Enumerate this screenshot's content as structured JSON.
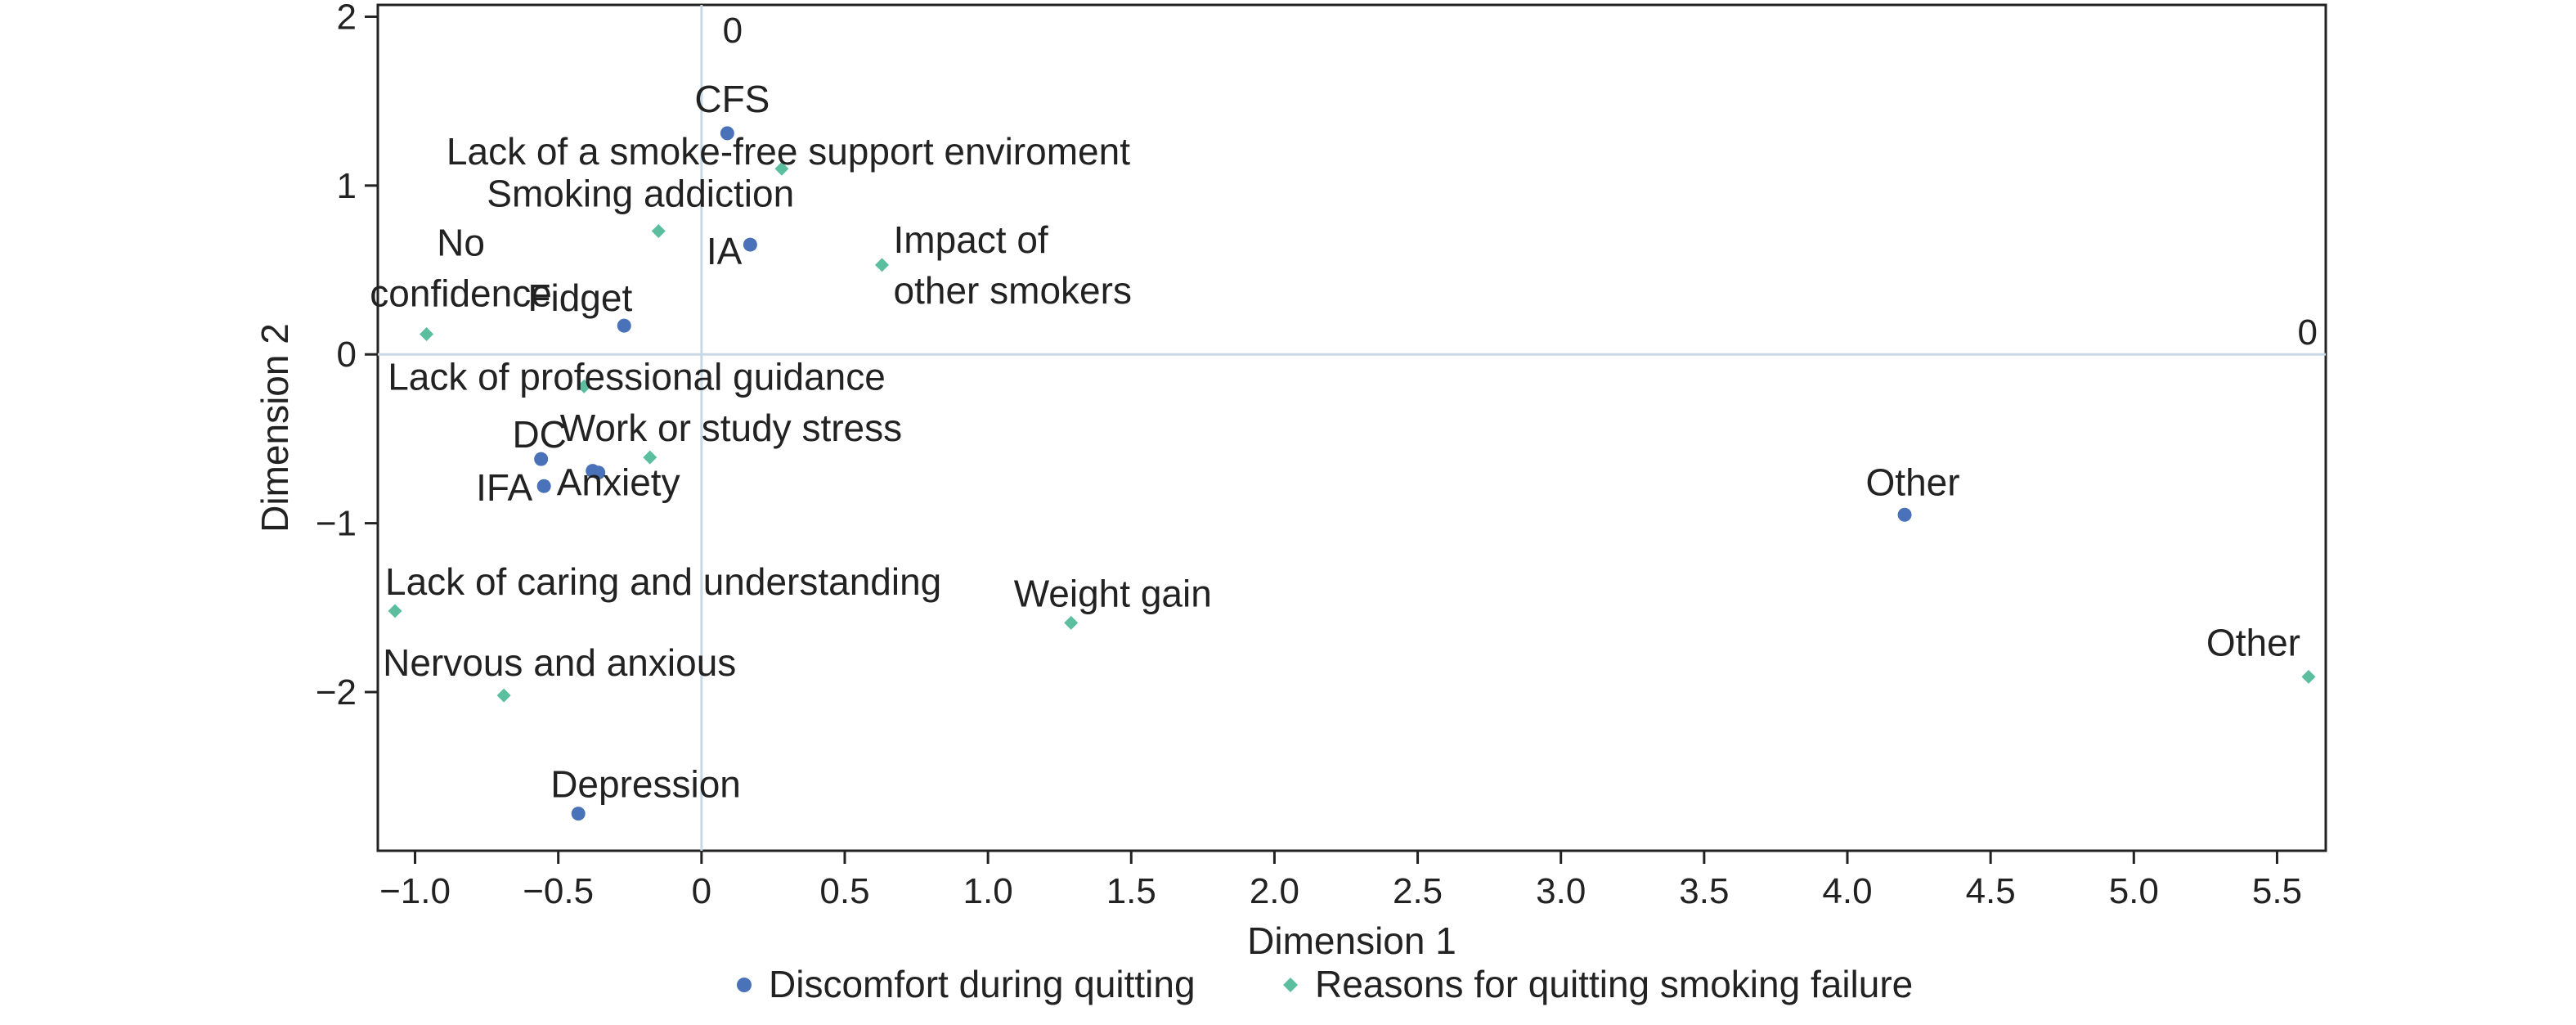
{
  "chart_data": {
    "type": "scatter",
    "xlabel": "Dimension 1",
    "ylabel": "Dimension 2",
    "xlim": [
      -1.13,
      5.67
    ],
    "ylim": [
      -2.94,
      2.07
    ],
    "xticks": [
      -1.0,
      -0.5,
      0,
      0.5,
      1.0,
      1.5,
      2.0,
      2.5,
      3.0,
      3.5,
      4.0,
      4.5,
      5.0,
      5.5
    ],
    "xtick_labels": [
      "−1.0",
      "−0.5",
      "0",
      "0.5",
      "1.0",
      "1.5",
      "2.0",
      "2.5",
      "3.0",
      "3.5",
      "4.0",
      "4.5",
      "5.0",
      "5.5"
    ],
    "yticks": [
      2,
      1,
      0,
      -1,
      -2
    ],
    "ytick_labels": [
      "2",
      "1",
      "0",
      "−1",
      "−2"
    ],
    "reference_line_labels": {
      "vertical": "0",
      "horizontal": "0"
    },
    "grid": false,
    "legend_position": "bottom-center",
    "series": [
      {
        "name": "Discomfort during quitting",
        "marker": "circle",
        "color": "#4a72b8",
        "points": [
          {
            "label": "CFS",
            "x": 0.09,
            "y": 1.31
          },
          {
            "label": "IA",
            "x": 0.17,
            "y": 0.65
          },
          {
            "label": "Fidget",
            "x": -0.27,
            "y": 0.17
          },
          {
            "label": "DC",
            "x": -0.56,
            "y": -0.62
          },
          {
            "label": "IFA",
            "x": -0.55,
            "y": -0.78
          },
          {
            "label": "Anxiety",
            "x": -0.38,
            "y": -0.69
          },
          {
            "label": "",
            "x": -0.36,
            "y": -0.7
          },
          {
            "label": "Other",
            "x": 4.2,
            "y": -0.95
          },
          {
            "label": "Depression",
            "x": -0.43,
            "y": -2.72
          }
        ]
      },
      {
        "name": "Reasons for quitting smoking failure",
        "marker": "diamond",
        "color": "#5bbf9f",
        "points": [
          {
            "label": "Lack of a smoke-free support enviroment",
            "x": 0.28,
            "y": 1.1
          },
          {
            "label": "Smoking addiction",
            "x": -0.15,
            "y": 0.73
          },
          {
            "label": "Impact of\nother smokers",
            "x": 0.63,
            "y": 0.53
          },
          {
            "label": "No\nconfidence",
            "x": -0.96,
            "y": 0.12
          },
          {
            "label": "Lack of professional guidance",
            "x": -0.41,
            "y": -0.19
          },
          {
            "label": "Work or study stress",
            "x": -0.18,
            "y": -0.61
          },
          {
            "label": "Lack of caring and understanding",
            "x": -1.07,
            "y": -1.52
          },
          {
            "label": "Weight gain",
            "x": 1.29,
            "y": -1.59
          },
          {
            "label": "Nervous and anxious",
            "x": -0.69,
            "y": -2.02
          },
          {
            "label": "Other",
            "x": 5.61,
            "y": -1.91
          }
        ]
      }
    ]
  }
}
